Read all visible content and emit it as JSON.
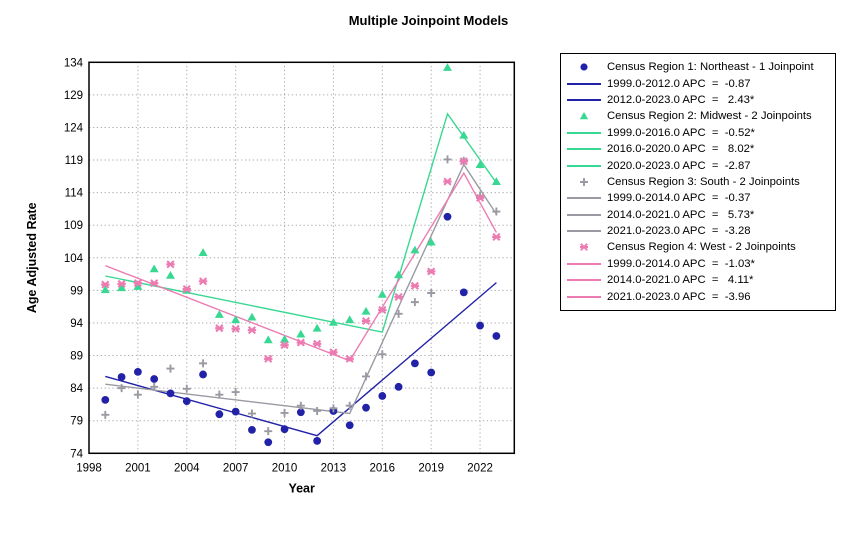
{
  "title": "Multiple Joinpoint Models",
  "chart_data": {
    "type": "line",
    "title": "Multiple Joinpoint Models",
    "xlabel": "Year",
    "ylabel": "Age Adjusted Rate",
    "x_range": [
      1998,
      2024.1
    ],
    "y_range": [
      74,
      134
    ],
    "x_ticks": [
      1998,
      2001,
      2004,
      2007,
      2010,
      2013,
      2016,
      2019,
      2022
    ],
    "y_ticks": [
      74,
      79,
      84,
      89,
      94,
      99,
      104,
      109,
      114,
      119,
      124,
      129,
      134
    ],
    "grid": "dotted",
    "grid_color": "#ababab",
    "legend_position": "right-outside",
    "years": [
      1999,
      2000,
      2001,
      2002,
      2003,
      2004,
      2005,
      2006,
      2007,
      2008,
      2009,
      2010,
      2011,
      2012,
      2013,
      2014,
      2015,
      2016,
      2017,
      2018,
      2019,
      2020,
      2021,
      2022,
      2023
    ],
    "series": [
      {
        "name": "Census Region 1: Northeast - 1 Joinpoint",
        "marker": "circle",
        "color": "#2222A8",
        "scatter": [
          82.2,
          85.7,
          86.5,
          85.4,
          83.2,
          82.0,
          86.1,
          80.0,
          80.4,
          77.6,
          75.7,
          77.7,
          80.3,
          75.9,
          80.5,
          78.3,
          81.0,
          82.8,
          84.2,
          87.8,
          86.4,
          110.3,
          98.7,
          93.6,
          92.0
        ],
        "line_points": [
          [
            1999,
            85.8
          ],
          [
            2012,
            76.7
          ],
          [
            2023,
            100.2
          ]
        ],
        "apc_segments": [
          {
            "label": "1999.0-2012.0 APC  =  -0.87"
          },
          {
            "label": "2012.0-2023.0 APC  =   2.43*"
          }
        ]
      },
      {
        "name": "Census Region 2: Midwest - 2 Joinpoints",
        "marker": "triangle",
        "color": "#38D893",
        "scatter": [
          99.1,
          99.4,
          99.6,
          102.3,
          101.3,
          99.0,
          104.8,
          95.3,
          94.5,
          94.9,
          91.4,
          91.5,
          92.3,
          93.2,
          94.1,
          94.5,
          95.8,
          98.4,
          101.4,
          105.2,
          106.4,
          133.2,
          122.8,
          118.3,
          115.7
        ],
        "line_points": [
          [
            1999,
            101.2
          ],
          [
            2016,
            92.6
          ],
          [
            2020,
            126.1
          ],
          [
            2023,
            115.5
          ]
        ],
        "apc_segments": [
          {
            "label": "1999.0-2016.0 APC  =  -0.52*"
          },
          {
            "label": "2016.0-2020.0 APC  =   8.02*"
          },
          {
            "label": "2020.0-2023.0 APC  =  -2.87"
          }
        ]
      },
      {
        "name": "Census Region 3: South - 2 Joinpoints",
        "marker": "plus",
        "color": "#9A9AA2",
        "scatter": [
          79.9,
          84.0,
          83.0,
          84.2,
          87.0,
          83.9,
          87.8,
          83.0,
          83.4,
          80.1,
          77.4,
          80.2,
          81.3,
          80.5,
          80.9,
          81.3,
          85.8,
          89.2,
          95.4,
          97.2,
          98.6,
          119.1,
          118.9,
          113.5,
          111.1
        ],
        "line_points": [
          [
            1999,
            84.6
          ],
          [
            2014,
            80.1
          ],
          [
            2021,
            118.3
          ],
          [
            2023,
            110.7
          ]
        ],
        "apc_segments": [
          {
            "label": "1999.0-2014.0 APC  =  -0.37"
          },
          {
            "label": "2014.0-2021.0 APC  =   5.73*"
          },
          {
            "label": "2021.0-2023.0 APC  =  -3.28"
          }
        ]
      },
      {
        "name": "Census Region 4: West - 2 Joinpoints",
        "marker": "x",
        "color": "#EC7BB2",
        "scatter": [
          99.9,
          100.0,
          100.1,
          100.1,
          103.0,
          99.2,
          100.4,
          93.2,
          93.1,
          92.9,
          88.5,
          90.6,
          91.0,
          90.8,
          89.5,
          88.5,
          94.3,
          96.0,
          98.0,
          99.7,
          101.9,
          115.7,
          118.8,
          113.2,
          107.2
        ],
        "line_points": [
          [
            1999,
            102.8
          ],
          [
            2014,
            88.2
          ],
          [
            2021,
            117.0
          ],
          [
            2023,
            107.9
          ]
        ],
        "apc_segments": [
          {
            "label": "1999.0-2014.0 APC  =  -1.03*"
          },
          {
            "label": "2014.0-2021.0 APC  =   4.11*"
          },
          {
            "label": "2021.0-2023.0 APC  =  -3.96"
          }
        ]
      }
    ]
  }
}
